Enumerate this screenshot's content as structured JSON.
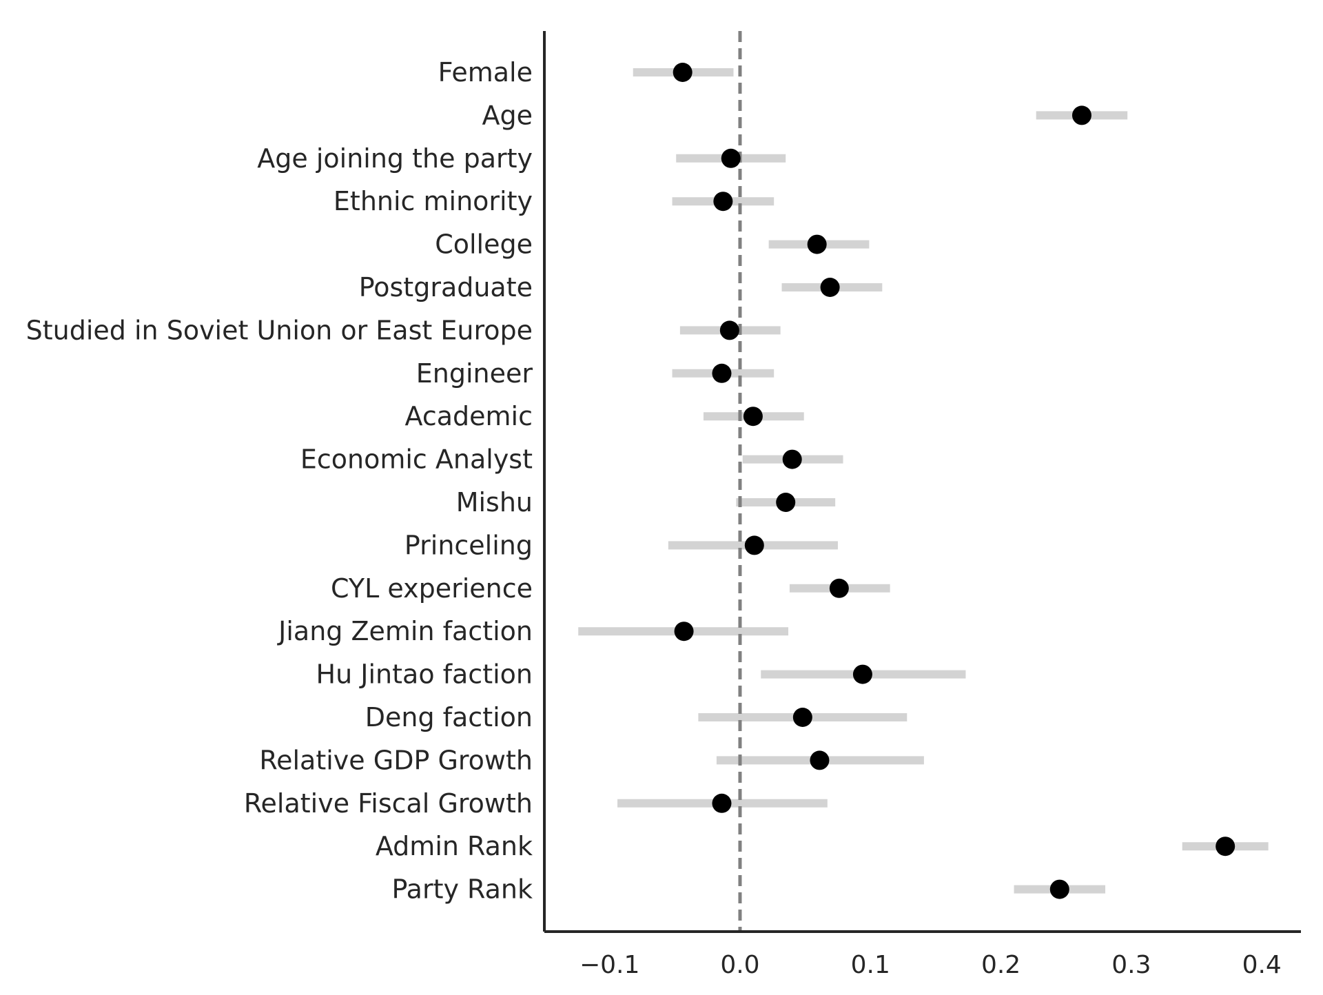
{
  "chart_data": {
    "type": "scatter",
    "subtype": "coefficient-plot",
    "title": "",
    "xlabel": "",
    "ylabel": "",
    "xlim": [
      -0.15,
      0.43
    ],
    "x_ticks": [
      -0.1,
      0.0,
      0.1,
      0.2,
      0.3,
      0.4
    ],
    "x_tick_labels": [
      "−0.1",
      "0.0",
      "0.1",
      "0.2",
      "0.3",
      "0.4"
    ],
    "reference_line": {
      "x": 0.0,
      "style": "dashed",
      "color": "#808080"
    },
    "grid": false,
    "legend": "none",
    "colors": {
      "point": "#000000",
      "interval": "#d3d3d3",
      "axis": "#262626",
      "text": "#262626"
    },
    "categories": [
      "Female",
      "Age",
      "Age joining the party",
      "Ethnic minority",
      "College",
      "Postgraduate",
      "Studied in Soviet Union or East Europe",
      "Engineer",
      "Academic",
      "Economic Analyst",
      "Mishu",
      "Princeling",
      "CYL experience",
      "Jiang Zemin faction",
      "Hu Jintao faction",
      "Deng faction",
      "Relative GDP Growth",
      "Relative Fiscal Growth",
      "Admin Rank",
      "Party Rank"
    ],
    "estimates": [
      -0.044,
      0.262,
      -0.007,
      -0.013,
      0.059,
      0.069,
      -0.008,
      -0.014,
      0.01,
      0.04,
      0.035,
      0.011,
      0.076,
      -0.043,
      0.094,
      0.048,
      0.061,
      -0.014,
      0.372,
      0.245
    ],
    "ci_low": [
      -0.082,
      0.227,
      -0.049,
      -0.052,
      0.022,
      0.032,
      -0.046,
      -0.052,
      -0.028,
      0.002,
      -0.003,
      -0.055,
      0.038,
      -0.124,
      0.016,
      -0.032,
      -0.018,
      -0.094,
      0.339,
      0.21
    ],
    "ci_high": [
      -0.005,
      0.297,
      0.035,
      0.026,
      0.099,
      0.109,
      0.031,
      0.026,
      0.049,
      0.079,
      0.073,
      0.075,
      0.115,
      0.037,
      0.173,
      0.128,
      0.141,
      0.067,
      0.405,
      0.28
    ]
  }
}
